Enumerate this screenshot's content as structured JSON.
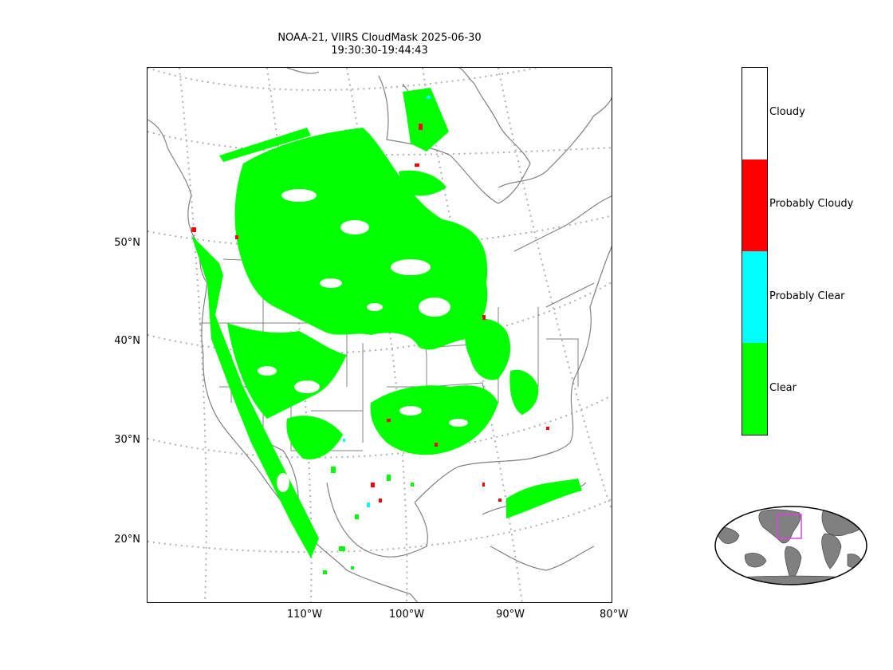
{
  "title": {
    "line1": "NOAA-21, VIIRS CloudMask 2025-06-30",
    "line2": "19:30:30-19:44:43"
  },
  "map": {
    "lat_labels": [
      "50°N",
      "40°N",
      "30°N",
      "20°N"
    ],
    "lon_labels": [
      "110°W",
      "100°W",
      "90°W",
      "80°W"
    ],
    "coastline_color": "#808080",
    "graticule_color": "#b0b0b0"
  },
  "legend": {
    "categories": [
      {
        "label": "Cloudy",
        "color": "#ffffff"
      },
      {
        "label": "Probably Cloudy",
        "color": "#ff0000"
      },
      {
        "label": "Probably Clear",
        "color": "#00ffff"
      },
      {
        "label": "Clear",
        "color": "#00ff00"
      }
    ]
  },
  "inset": {
    "land_color": "#808080",
    "box_color": "#e040e0"
  }
}
